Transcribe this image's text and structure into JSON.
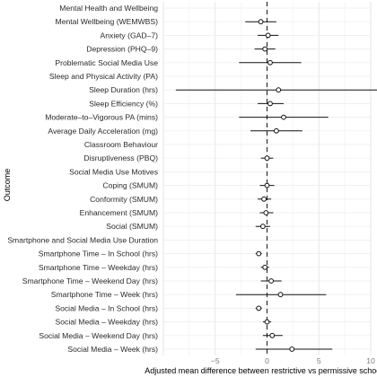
{
  "chart_data": {
    "type": "forest",
    "xlabel": "Adjusted mean difference between restrictive vs permissive schools",
    "ylabel": "Outcome",
    "xlim": [
      -10,
      10
    ],
    "x_ticks": [
      -5,
      0,
      5,
      10
    ],
    "reference_line": 0,
    "grid": true,
    "rows": [
      {
        "label": "Mental Health and Wellbeing",
        "header": true
      },
      {
        "label": "Mental Wellbeing (WEMWBS)",
        "est": -0.6,
        "lo": -2.1,
        "hi": 0.9
      },
      {
        "label": "Anxiety (GAD–7)",
        "est": 0.1,
        "lo": -0.9,
        "hi": 1.1
      },
      {
        "label": "Depression (PHQ–9)",
        "est": -0.2,
        "lo": -1.2,
        "hi": 0.8
      },
      {
        "label": "Problematic Social Media Use",
        "est": 0.3,
        "lo": -2.7,
        "hi": 3.3
      },
      {
        "label": "Sleep and Physical Activity (PA)",
        "header": true
      },
      {
        "label": "Sleep Duration (hrs)",
        "est": 1.1,
        "lo": -8.8,
        "hi": 10.8
      },
      {
        "label": "Sleep Efficiency (%)",
        "est": 0.3,
        "lo": -0.9,
        "hi": 1.6
      },
      {
        "label": "Moderate–to–Vigorous PA (mins)",
        "est": 1.6,
        "lo": -2.7,
        "hi": 5.9
      },
      {
        "label": "Average Daily Acceleration (mg)",
        "est": 0.9,
        "lo": -1.6,
        "hi": 3.4
      },
      {
        "label": "Classroom Behaviour",
        "header": true
      },
      {
        "label": "Disruptiveness (PBQ)",
        "est": 0.0,
        "lo": -0.6,
        "hi": 0.6
      },
      {
        "label": "Social Media Use Motives",
        "header": true
      },
      {
        "label": "Coping (SMUM)",
        "est": 0.0,
        "lo": -0.7,
        "hi": 0.7
      },
      {
        "label": "Conformity (SMUM)",
        "est": -0.3,
        "lo": -0.9,
        "hi": 0.4
      },
      {
        "label": "Enhancement (SMUM)",
        "est": -0.1,
        "lo": -0.7,
        "hi": 0.6
      },
      {
        "label": "Social (SMUM)",
        "est": -0.4,
        "lo": -1.1,
        "hi": 0.3
      },
      {
        "label": "Smartphone and Social Media Use Duration",
        "header": true
      },
      {
        "label": "Smartphone Time – In School (hrs)",
        "est": -0.8,
        "lo": -1.1,
        "hi": -0.5
      },
      {
        "label": "Smartphone Time – Weekday (hrs)",
        "est": -0.2,
        "lo": -0.6,
        "hi": 0.2
      },
      {
        "label": "Smartphone Time – Weekend Day (hrs)",
        "est": 0.4,
        "lo": -0.6,
        "hi": 1.4
      },
      {
        "label": "Smartphone Time – Week (hrs)",
        "est": 1.3,
        "lo": -3.0,
        "hi": 5.7
      },
      {
        "label": "Social Media – In School (hrs)",
        "est": -0.8,
        "lo": -1.1,
        "hi": -0.5
      },
      {
        "label": "Social Media – Weekday (hrs)",
        "est": 0.0,
        "lo": -0.4,
        "hi": 0.4
      },
      {
        "label": "Social Media – Weekend Day (hrs)",
        "est": 0.5,
        "lo": -0.4,
        "hi": 1.5
      },
      {
        "label": "Social Media – Week (hrs)",
        "est": 2.4,
        "lo": -1.1,
        "hi": 6.3
      }
    ]
  }
}
